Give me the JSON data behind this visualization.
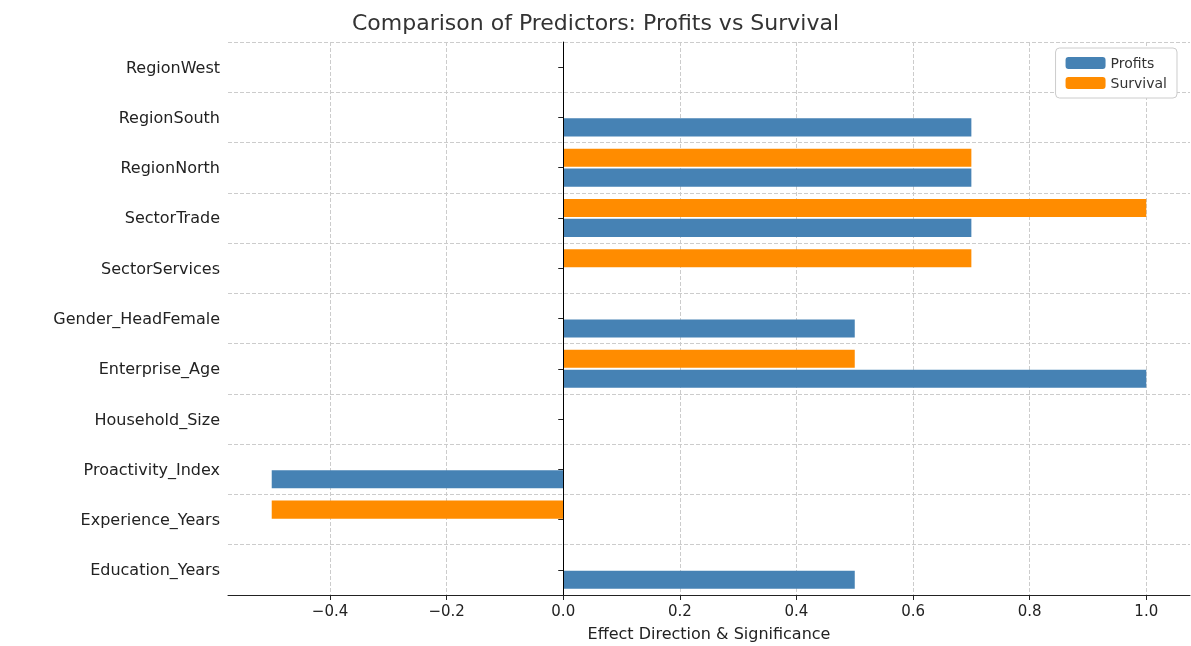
{
  "chart_data": {
    "type": "bar",
    "orientation": "horizontal",
    "title": "Comparison of Predictors: Profits vs Survival",
    "xlabel": "Effect Direction & Significance",
    "categories": [
      "RegionWest",
      "RegionSouth",
      "RegionNorth",
      "SectorTrade",
      "SectorServices",
      "Gender_HeadFemale",
      "Enterprise_Age",
      "Household_Size",
      "Proactivity_Index",
      "Experience_Years",
      "Education_Years"
    ],
    "series": [
      {
        "name": "Profits",
        "color": "#4682b4",
        "values": [
          0,
          0.7,
          0.7,
          0.7,
          0,
          0.5,
          1.0,
          0,
          -0.5,
          0,
          0.5
        ]
      },
      {
        "name": "Survival",
        "color": "#ff8c00",
        "values": [
          0,
          0,
          0.7,
          1.0,
          0.7,
          0,
          0.5,
          0,
          0,
          -0.5,
          0
        ]
      }
    ],
    "xlim": [
      -0.575,
      1.075
    ],
    "xticks": [
      {
        "value": -0.4,
        "label": "−0.4"
      },
      {
        "value": -0.2,
        "label": "−0.2"
      },
      {
        "value": 0,
        "label": "0.0"
      },
      {
        "value": 0.2,
        "label": "0.2"
      },
      {
        "value": 0.4,
        "label": "0.4"
      },
      {
        "value": 0.6,
        "label": "0.6"
      },
      {
        "value": 0.8,
        "label": "0.8"
      },
      {
        "value": 1.0,
        "label": "1.0"
      }
    ],
    "ref_lines": [
      {
        "axis": "x",
        "value": 0,
        "color": "#000000"
      }
    ],
    "grid": true,
    "legend": "top right"
  }
}
